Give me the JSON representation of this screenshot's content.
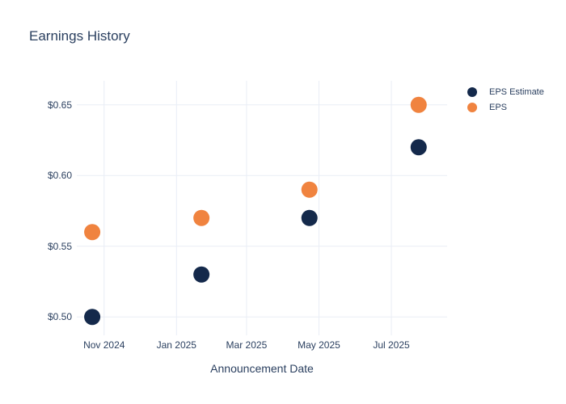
{
  "page": {
    "background": "#ffffff"
  },
  "colors": {
    "title_text": "#2a3f5f",
    "axis_text": "#2a3f5f",
    "grid": "#e9edf6",
    "background": "#ffffff",
    "eps_estimate": "#14294b",
    "eps": "#f0833f"
  },
  "chart_data": {
    "type": "scatter",
    "title": "Earnings History",
    "xlabel": "Announcement Date",
    "ylabel": "",
    "x_axis_type": "date",
    "x_range": [
      "2024-10-09",
      "2025-08-17"
    ],
    "y_range": [
      0.487,
      0.667
    ],
    "grid": true,
    "legend_position": "outside-right-top",
    "x_ticks": [
      {
        "label": "Nov 2024",
        "value": "2024-11-01"
      },
      {
        "label": "Jan 2025",
        "value": "2025-01-01"
      },
      {
        "label": "Mar 2025",
        "value": "2025-03-01"
      },
      {
        "label": "May 2025",
        "value": "2025-05-01"
      },
      {
        "label": "Jul 2025",
        "value": "2025-07-01"
      }
    ],
    "y_ticks": [
      {
        "label": "$0.50",
        "value": 0.5
      },
      {
        "label": "$0.55",
        "value": 0.55
      },
      {
        "label": "$0.60",
        "value": 0.6
      },
      {
        "label": "$0.65",
        "value": 0.65
      }
    ],
    "series": [
      {
        "name": "EPS Estimate",
        "color_key": "eps_estimate",
        "marker_diameter": 20,
        "points": [
          {
            "x": "2024-10-22",
            "y": 0.5
          },
          {
            "x": "2025-01-22",
            "y": 0.53
          },
          {
            "x": "2025-04-23",
            "y": 0.57
          },
          {
            "x": "2025-07-24",
            "y": 0.62
          }
        ]
      },
      {
        "name": "EPS",
        "color_key": "eps",
        "marker_diameter": 20,
        "points": [
          {
            "x": "2024-10-22",
            "y": 0.56
          },
          {
            "x": "2025-01-22",
            "y": 0.57
          },
          {
            "x": "2025-04-23",
            "y": 0.59
          },
          {
            "x": "2025-07-24",
            "y": 0.65
          }
        ]
      }
    ]
  }
}
